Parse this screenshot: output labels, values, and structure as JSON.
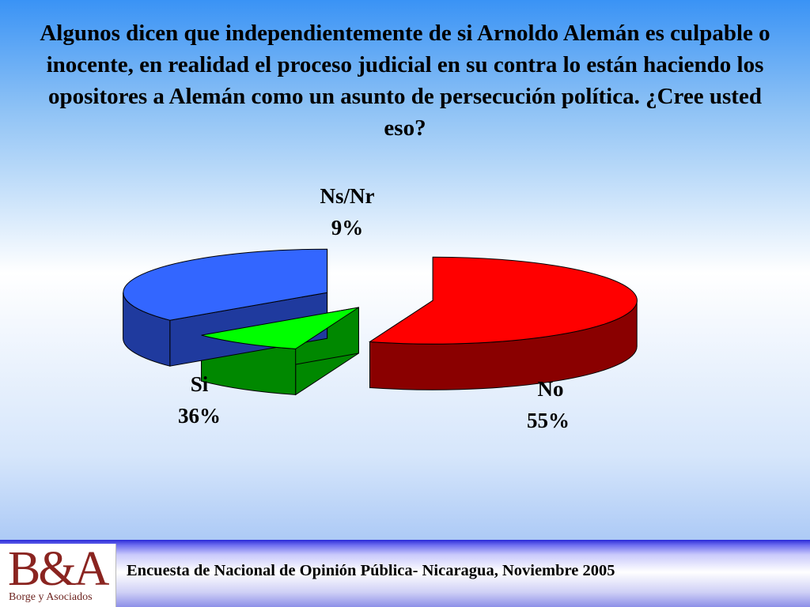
{
  "question": "Algunos dicen que independientemente de si Arnoldo Alemán es culpable o inocente, en realidad el proceso judicial en su contra lo están haciendo los opositores a Alemán como un asunto de persecución política. ¿Cree usted eso?",
  "chart_data": {
    "type": "pie",
    "three_d": true,
    "exploded": true,
    "slices": [
      {
        "label": "No",
        "value": 55,
        "display": "55%",
        "color": "#ff0000",
        "side_color": "#8a0000"
      },
      {
        "label": "Ns/Nr",
        "value": 9,
        "display": "9%",
        "color": "#00ff00",
        "side_color": "#008800"
      },
      {
        "label": "Si",
        "value": 36,
        "display": "36%",
        "color": "#3366ff",
        "side_color": "#1f3a9e"
      }
    ]
  },
  "logo": {
    "mark": "B&A",
    "subtitle": "Borge y Asociados"
  },
  "footer": {
    "text": "Encuesta de Nacional de Opinión Pública- Nicaragua, Noviembre 2005"
  }
}
